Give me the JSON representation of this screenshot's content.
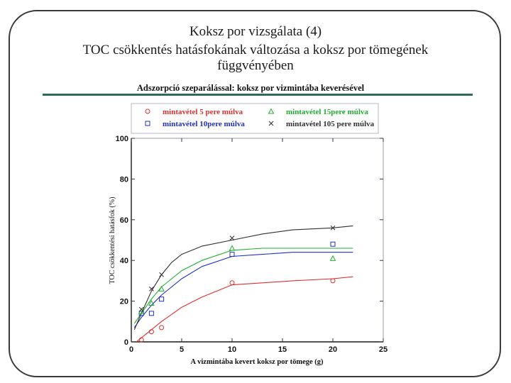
{
  "slide": {
    "title": "Koksz por vizsgálata (4)",
    "subtitle": "TOC csökkentés hatásfokának változása a koksz por tömegének függvényében"
  },
  "colors": {
    "frame": "#3a3a3a",
    "rule": "#2f6b5d",
    "axis": "#1a1a1a"
  },
  "chart_data": {
    "type": "scatter",
    "title": "Adszorpció szeparálással: koksz por vizmintába keverésével",
    "xlabel": "A vizmintába kevert koksz por tömege (g)",
    "ylabel": "TOC csökkentési hatásfok (%)",
    "xlim": [
      0,
      25
    ],
    "ylim": [
      0,
      100
    ],
    "xticks": [
      0,
      5,
      10,
      15,
      20,
      25
    ],
    "yticks": [
      0,
      20,
      40,
      60,
      80,
      100
    ],
    "legend_position": "top",
    "series": [
      {
        "name": "mintavétel 5 pere múlva",
        "marker": "circle",
        "color": "#e03030",
        "points": [
          [
            1,
            1
          ],
          [
            2,
            5
          ],
          [
            3,
            7
          ],
          [
            10,
            29
          ],
          [
            20,
            30
          ]
        ],
        "curve": [
          [
            0.5,
            0
          ],
          [
            1,
            2
          ],
          [
            2,
            6
          ],
          [
            3,
            10
          ],
          [
            5,
            17
          ],
          [
            7,
            22
          ],
          [
            10,
            28
          ],
          [
            13,
            29
          ],
          [
            16,
            30
          ],
          [
            20,
            31
          ],
          [
            22,
            32
          ]
        ]
      },
      {
        "name": "mintavétel 10pere múlva",
        "marker": "square",
        "color": "#2030c8",
        "points": [
          [
            1,
            14
          ],
          [
            2,
            14
          ],
          [
            3,
            21
          ],
          [
            10,
            43
          ],
          [
            20,
            48
          ]
        ],
        "curve": [
          [
            0.3,
            7
          ],
          [
            1,
            12
          ],
          [
            2,
            18
          ],
          [
            3,
            23
          ],
          [
            5,
            31
          ],
          [
            7,
            37
          ],
          [
            10,
            42
          ],
          [
            13,
            43
          ],
          [
            16,
            44
          ],
          [
            20,
            44
          ],
          [
            22,
            44
          ]
        ]
      },
      {
        "name": "mintavétel 15pere múlva",
        "marker": "triangle",
        "color": "#20b030",
        "points": [
          [
            1,
            15
          ],
          [
            2,
            19
          ],
          [
            3,
            26
          ],
          [
            10,
            46
          ],
          [
            20,
            41
          ]
        ],
        "curve": [
          [
            0.3,
            9
          ],
          [
            1,
            14
          ],
          [
            2,
            21
          ],
          [
            3,
            27
          ],
          [
            5,
            35
          ],
          [
            7,
            40
          ],
          [
            10,
            45
          ],
          [
            13,
            46
          ],
          [
            16,
            46
          ],
          [
            20,
            46
          ],
          [
            22,
            46
          ]
        ]
      },
      {
        "name": "mintavétel 105 pere múlva",
        "marker": "x",
        "color": "#303030",
        "points": [
          [
            1,
            16
          ],
          [
            2,
            26
          ],
          [
            3,
            33
          ],
          [
            10,
            51
          ],
          [
            20,
            56
          ]
        ],
        "curve": [
          [
            0.3,
            6
          ],
          [
            1,
            14
          ],
          [
            2,
            25
          ],
          [
            3,
            33
          ],
          [
            4,
            39
          ],
          [
            5,
            43
          ],
          [
            7,
            47
          ],
          [
            10,
            50
          ],
          [
            13,
            53
          ],
          [
            16,
            55
          ],
          [
            20,
            56
          ],
          [
            22,
            57
          ]
        ]
      }
    ]
  }
}
